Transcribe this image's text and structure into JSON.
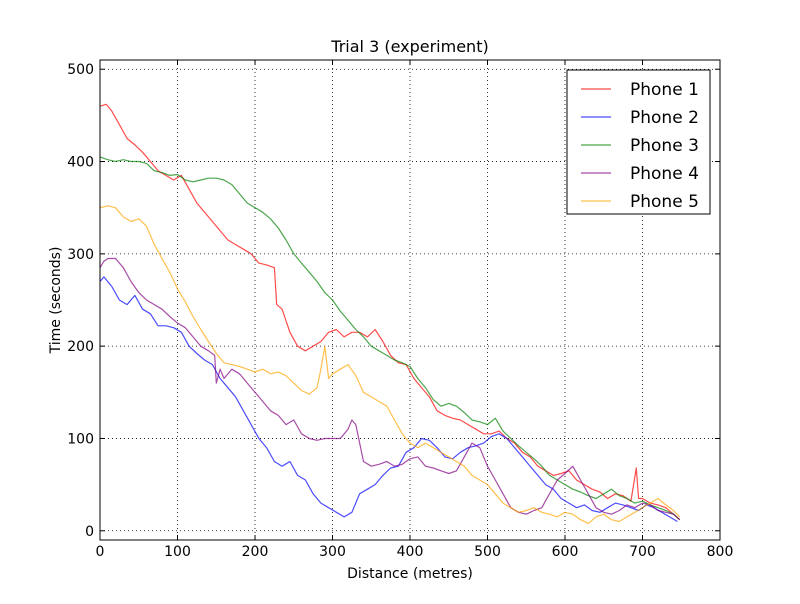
{
  "chart_data": {
    "type": "line",
    "title": "Trial 3 (experiment)",
    "xlabel": "Distance (metres)",
    "ylabel": "Time (seconds)",
    "xlim": [
      0,
      800
    ],
    "ylim": [
      -10,
      510
    ],
    "xticks": [
      "0",
      "100",
      "200",
      "300",
      "400",
      "500",
      "600",
      "700",
      "800"
    ],
    "yticks": [
      "0",
      "100",
      "200",
      "300",
      "400",
      "500"
    ],
    "xtick_values": [
      0,
      100,
      200,
      300,
      400,
      500,
      600,
      700,
      800
    ],
    "ytick_values": [
      0,
      100,
      200,
      300,
      400,
      500
    ],
    "grid": true,
    "legend_position": "top-right",
    "series": [
      {
        "name": "Phone 1",
        "color": "#ff0000",
        "x": [
          0,
          8,
          15,
          25,
          35,
          45,
          55,
          65,
          75,
          85,
          95,
          105,
          115,
          125,
          135,
          145,
          155,
          165,
          175,
          185,
          195,
          205,
          215,
          225,
          228,
          235,
          245,
          255,
          265,
          275,
          285,
          295,
          305,
          315,
          325,
          335,
          345,
          355,
          365,
          375,
          385,
          395,
          405,
          415,
          425,
          435,
          445,
          455,
          465,
          475,
          485,
          495,
          505,
          515,
          525,
          535,
          545,
          555,
          565,
          575,
          585,
          595,
          605,
          615,
          625,
          635,
          645,
          655,
          665,
          675,
          685,
          692,
          695,
          700,
          710,
          720,
          730,
          740,
          748
        ],
        "y": [
          460,
          462,
          455,
          440,
          425,
          418,
          410,
          400,
          390,
          385,
          380,
          385,
          370,
          355,
          345,
          335,
          325,
          315,
          310,
          305,
          300,
          290,
          288,
          285,
          245,
          240,
          215,
          200,
          195,
          200,
          205,
          215,
          218,
          210,
          215,
          215,
          210,
          218,
          205,
          190,
          182,
          180,
          165,
          155,
          145,
          130,
          125,
          122,
          120,
          115,
          110,
          105,
          105,
          108,
          100,
          95,
          85,
          80,
          70,
          65,
          60,
          62,
          65,
          55,
          50,
          45,
          42,
          35,
          40,
          38,
          32,
          68,
          35,
          35,
          30,
          28,
          25,
          18,
          12
        ]
      },
      {
        "name": "Phone 2",
        "color": "#0000ff",
        "x": [
          0,
          5,
          15,
          25,
          35,
          45,
          55,
          65,
          75,
          85,
          95,
          105,
          115,
          125,
          135,
          145,
          155,
          165,
          175,
          185,
          195,
          205,
          215,
          225,
          235,
          245,
          255,
          265,
          275,
          285,
          295,
          305,
          315,
          325,
          335,
          345,
          355,
          365,
          375,
          385,
          395,
          405,
          415,
          425,
          435,
          445,
          455,
          465,
          475,
          485,
          495,
          505,
          515,
          525,
          535,
          545,
          555,
          565,
          575,
          585,
          595,
          605,
          615,
          625,
          635,
          645,
          655,
          665,
          675,
          685,
          695,
          705,
          715,
          725,
          735,
          745
        ],
        "y": [
          270,
          275,
          265,
          250,
          245,
          255,
          240,
          235,
          222,
          222,
          220,
          215,
          200,
          192,
          185,
          180,
          165,
          155,
          145,
          130,
          115,
          100,
          90,
          75,
          70,
          75,
          60,
          55,
          40,
          30,
          25,
          20,
          15,
          20,
          40,
          45,
          50,
          60,
          68,
          70,
          85,
          90,
          100,
          98,
          90,
          80,
          78,
          85,
          90,
          92,
          95,
          102,
          105,
          100,
          90,
          80,
          70,
          60,
          50,
          45,
          35,
          30,
          25,
          28,
          22,
          20,
          25,
          30,
          28,
          25,
          22,
          28,
          25,
          20,
          15,
          10
        ]
      },
      {
        "name": "Phone 3",
        "color": "#008000",
        "x": [
          0,
          10,
          20,
          30,
          40,
          50,
          60,
          70,
          80,
          90,
          100,
          110,
          120,
          130,
          140,
          150,
          160,
          170,
          180,
          190,
          200,
          210,
          220,
          230,
          240,
          250,
          260,
          270,
          280,
          290,
          300,
          310,
          320,
          330,
          340,
          350,
          360,
          370,
          380,
          390,
          400,
          410,
          420,
          430,
          440,
          450,
          460,
          470,
          480,
          490,
          500,
          510,
          520,
          530,
          540,
          550,
          560,
          570,
          580,
          590,
          600,
          610,
          620,
          630,
          640,
          650,
          660,
          670,
          680,
          690,
          700,
          710,
          720,
          730,
          740,
          748
        ],
        "y": [
          405,
          402,
          400,
          402,
          400,
          400,
          398,
          390,
          388,
          385,
          386,
          380,
          378,
          380,
          382,
          382,
          380,
          375,
          365,
          355,
          350,
          345,
          338,
          328,
          315,
          300,
          290,
          280,
          270,
          258,
          250,
          238,
          228,
          218,
          210,
          200,
          195,
          190,
          185,
          182,
          178,
          165,
          155,
          142,
          135,
          138,
          135,
          128,
          120,
          118,
          115,
          122,
          108,
          100,
          92,
          85,
          78,
          70,
          60,
          55,
          50,
          45,
          42,
          38,
          35,
          40,
          45,
          38,
          35,
          30,
          32,
          28,
          25,
          22,
          18,
          12
        ]
      },
      {
        "name": "Phone 4",
        "color": "#800080",
        "x": [
          0,
          5,
          10,
          20,
          30,
          40,
          50,
          60,
          70,
          80,
          90,
          100,
          110,
          120,
          130,
          140,
          148,
          150,
          155,
          160,
          170,
          180,
          190,
          200,
          210,
          220,
          230,
          240,
          250,
          260,
          270,
          280,
          290,
          300,
          310,
          320,
          325,
          330,
          340,
          350,
          360,
          370,
          380,
          390,
          400,
          410,
          420,
          430,
          440,
          450,
          460,
          470,
          480,
          490,
          500,
          510,
          520,
          530,
          540,
          550,
          560,
          570,
          580,
          590,
          600,
          610,
          620,
          630,
          640,
          650,
          660,
          670,
          680,
          690,
          700,
          710,
          720,
          730,
          740,
          748
        ],
        "y": [
          285,
          292,
          295,
          295,
          285,
          270,
          258,
          250,
          245,
          240,
          232,
          225,
          220,
          210,
          200,
          195,
          190,
          160,
          175,
          165,
          175,
          170,
          160,
          150,
          140,
          130,
          125,
          115,
          120,
          105,
          100,
          98,
          100,
          100,
          100,
          110,
          120,
          115,
          75,
          70,
          72,
          75,
          70,
          72,
          78,
          80,
          70,
          68,
          65,
          62,
          65,
          80,
          95,
          90,
          70,
          55,
          40,
          25,
          20,
          18,
          22,
          25,
          40,
          55,
          62,
          70,
          55,
          40,
          25,
          20,
          18,
          22,
          28,
          25,
          30,
          28,
          22,
          20,
          18,
          12
        ]
      },
      {
        "name": "Phone 5",
        "color": "#ffa500",
        "x": [
          0,
          10,
          20,
          30,
          40,
          50,
          60,
          70,
          80,
          90,
          100,
          110,
          120,
          130,
          140,
          150,
          160,
          170,
          180,
          190,
          200,
          210,
          220,
          230,
          240,
          250,
          260,
          270,
          280,
          285,
          290,
          295,
          300,
          310,
          320,
          330,
          340,
          350,
          360,
          370,
          380,
          390,
          400,
          410,
          420,
          430,
          440,
          450,
          460,
          470,
          480,
          490,
          500,
          510,
          520,
          530,
          540,
          550,
          560,
          570,
          580,
          590,
          600,
          610,
          620,
          630,
          640,
          650,
          660,
          670,
          680,
          690,
          700,
          710,
          720,
          730,
          740,
          748
        ],
        "y": [
          350,
          352,
          350,
          340,
          335,
          338,
          330,
          310,
          295,
          280,
          262,
          248,
          232,
          218,
          205,
          192,
          182,
          180,
          178,
          175,
          172,
          175,
          170,
          172,
          168,
          160,
          152,
          148,
          155,
          175,
          200,
          165,
          170,
          175,
          180,
          168,
          150,
          145,
          140,
          135,
          120,
          105,
          95,
          90,
          95,
          90,
          85,
          80,
          75,
          70,
          60,
          55,
          50,
          40,
          30,
          25,
          20,
          22,
          25,
          20,
          18,
          15,
          20,
          18,
          12,
          8,
          15,
          18,
          12,
          10,
          15,
          20,
          25,
          30,
          35,
          28,
          22,
          15
        ]
      }
    ]
  }
}
